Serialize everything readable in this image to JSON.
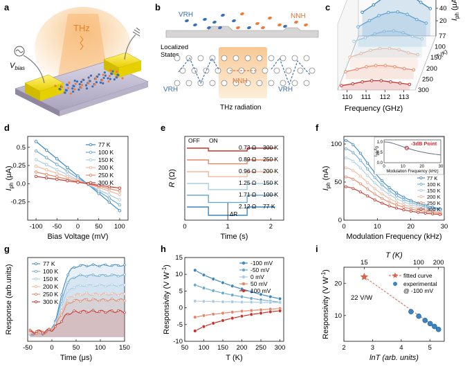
{
  "colors": {
    "77": "#3a86c2",
    "100": "#6aa8d3",
    "150": "#a9cde4",
    "200": "#f2b79a",
    "250": "#e98565",
    "300": "#c9332b",
    "gold": "#f2e500",
    "thz": "#f4a65a",
    "vrh_dot": "#3a6fb5",
    "nnh_dot": "#ee7d3a"
  },
  "panel_labels": [
    "a",
    "b",
    "c",
    "d",
    "e",
    "f",
    "g",
    "h",
    "i"
  ],
  "panel_a": {
    "thz_label": "THz",
    "vbias_label": "V",
    "vbias_sub": "bias"
  },
  "panel_b": {
    "vrh_top": "VRH",
    "nnh_top": "NNH",
    "localized": "Localized",
    "states": "States",
    "vrh_left": "VRH",
    "nnh_mid": "NNH",
    "vrh_right": "VRH",
    "thz_radiation": "THz radiation"
  },
  "chart_data": [
    {
      "id": "c",
      "type": "line",
      "series_style": "3d-waterfall",
      "xlabel": "Frequency (GHz)",
      "xticks": [
        110,
        111,
        112,
        113
      ],
      "zlabel": "I",
      "zlabel_sub": "ph",
      "zlabel_unit": " (μA)",
      "zticks": [
        20,
        40,
        60,
        80
      ],
      "depth_label": "T (K)",
      "depth_ticks": [
        "77",
        "100",
        "150",
        "200",
        "250",
        "300"
      ],
      "series": [
        {
          "name": "77",
          "x": [
            109.7,
            110.3,
            110.8,
            111.3,
            111.8,
            112.3,
            112.8,
            113.3
          ],
          "y": [
            38,
            50,
            61,
            68,
            70,
            64,
            54,
            44
          ]
        },
        {
          "name": "100",
          "x": [
            109.7,
            110.3,
            110.8,
            111.3,
            111.8,
            112.3,
            112.8,
            113.3
          ],
          "y": [
            32,
            42,
            50,
            55,
            56,
            52,
            44,
            38
          ]
        },
        {
          "name": "150",
          "x": [
            109.7,
            110.3,
            110.8,
            111.3,
            111.8,
            112.3,
            112.8,
            113.3
          ],
          "y": [
            26,
            32,
            38,
            42,
            43,
            40,
            34,
            30
          ]
        },
        {
          "name": "200",
          "x": [
            109.7,
            110.3,
            110.8,
            111.3,
            111.8,
            112.3,
            112.8,
            113.3
          ],
          "y": [
            18,
            24,
            29,
            32,
            32,
            30,
            25,
            22
          ]
        },
        {
          "name": "250",
          "x": [
            109.7,
            110.3,
            110.8,
            111.3,
            111.8,
            112.3,
            112.8,
            113.3
          ],
          "y": [
            12,
            16,
            20,
            22,
            22,
            20,
            17,
            15
          ]
        },
        {
          "name": "300",
          "x": [
            109.7,
            110.3,
            110.8,
            111.3,
            111.8,
            112.3,
            112.8,
            113.3
          ],
          "y": [
            7,
            10,
            13,
            15,
            15,
            13,
            11,
            9
          ]
        }
      ]
    },
    {
      "id": "d",
      "type": "line",
      "xlabel": "Bias Voltage (mV)",
      "ylabel": "I",
      "ylabel_sub": "ph",
      "ylabel_unit": " (μA)",
      "xlim": [
        -120,
        120
      ],
      "ylim": [
        -0.5,
        0.65
      ],
      "xticks": [
        -100,
        -50,
        0,
        50,
        100
      ],
      "yticks": [
        -0.25,
        0.0,
        0.25,
        0.5
      ],
      "ytick_labels": [
        "-0.25",
        "0.0",
        "0.25",
        "0.5"
      ],
      "xtick_labels": [
        "-100",
        "-50",
        "0",
        "50",
        "100"
      ],
      "legend": "top-right",
      "series": [
        {
          "name": "77 K",
          "color_key": "77",
          "x0": -100,
          "y0": 0.58,
          "x1": 100,
          "y1": -0.37
        },
        {
          "name": "100 K",
          "color_key": "100",
          "x0": -100,
          "y0": 0.45,
          "x1": 100,
          "y1": -0.29
        },
        {
          "name": "150 K",
          "color_key": "150",
          "x0": -100,
          "y0": 0.33,
          "x1": 100,
          "y1": -0.22
        },
        {
          "name": "200 K",
          "color_key": "200",
          "x0": -100,
          "y0": 0.24,
          "x1": 100,
          "y1": -0.15
        },
        {
          "name": "250 K",
          "color_key": "250",
          "x0": -100,
          "y0": 0.16,
          "x1": 100,
          "y1": -0.1
        },
        {
          "name": "300 K",
          "color_key": "300",
          "x0": -100,
          "y0": 0.1,
          "x1": 100,
          "y1": -0.06
        }
      ]
    },
    {
      "id": "e",
      "type": "line",
      "xlabel": "Time (s)",
      "ylabel": "R (Ω)",
      "xlim": [
        0,
        2.3
      ],
      "xticks": [
        0,
        1,
        2
      ],
      "xtick_labels": [
        "0",
        "1",
        "2"
      ],
      "off_label": "OFF",
      "on_label": "ON",
      "delta_label": "ΔR",
      "step_on": 0.55,
      "step_off": 1.45,
      "series": [
        {
          "name": "300 K",
          "color_key": "300",
          "delta": "0.73 Ω"
        },
        {
          "name": "250 K",
          "color_key": "250",
          "delta": "0.89 Ω"
        },
        {
          "name": "200 K",
          "color_key": "200",
          "delta": "0.96 Ω"
        },
        {
          "name": "150 K",
          "color_key": "150",
          "delta": "1.25 Ω"
        },
        {
          "name": "100 K",
          "color_key": "100",
          "delta": "1.71 Ω"
        },
        {
          "name": "77 K",
          "color_key": "77",
          "delta": "2.12 Ω"
        }
      ]
    },
    {
      "id": "f",
      "type": "line",
      "xlabel": "Modulation Frequency (kHz)",
      "ylabel": "I",
      "ylabel_sub": "ph",
      "ylabel_unit": " (nA)",
      "xlim": [
        0,
        30
      ],
      "ylim": [
        0,
        110
      ],
      "xticks": [
        0,
        10,
        20,
        30
      ],
      "yticks": [
        0,
        50,
        100
      ],
      "xtick_labels": [
        "0",
        "10",
        "20",
        "30"
      ],
      "ytick_labels": [
        "0",
        "50",
        "100"
      ],
      "legend": "right",
      "series": [
        {
          "name": "77 K",
          "color_key": "77",
          "amp": 103
        },
        {
          "name": "100 K",
          "color_key": "100",
          "amp": 92
        },
        {
          "name": "150 K",
          "color_key": "150",
          "amp": 80
        },
        {
          "name": "200 K",
          "color_key": "200",
          "amp": 67
        },
        {
          "name": "250 K",
          "color_key": "250",
          "amp": 55
        },
        {
          "name": "300 K",
          "color_key": "300",
          "amp": 42
        }
      ],
      "inset": {
        "ylabel": "I",
        "ylabel_sub": "ph",
        "ylabel_over": "/I",
        "ylabel_sub2": "0",
        "xlabel": "Modulation Frequency (kHz)",
        "xticks": [
          0,
          10,
          20,
          30
        ],
        "xtick_labels": [
          "0",
          "10",
          "20",
          "30"
        ],
        "yticks": [
          0.0,
          0.5,
          1.0
        ],
        "ytick_labels": [
          "0.0",
          "0.5",
          "1.0"
        ],
        "marker_label": "-3dB Point",
        "marker_x": 12,
        "marker_y": 0.707
      }
    },
    {
      "id": "g",
      "type": "area",
      "xlabel": "Time (μs)",
      "ylabel": "Response (arb.units)",
      "xlim": [
        -50,
        150
      ],
      "xticks": [
        -50,
        0,
        50,
        100,
        150
      ],
      "xtick_labels": [
        "-50",
        "0",
        "50",
        "100",
        "150"
      ],
      "legend": "top-left",
      "series": [
        {
          "name": "77 K",
          "color_key": "77",
          "level": 0.94
        },
        {
          "name": "100 K",
          "color_key": "100",
          "level": 0.8
        },
        {
          "name": "150 K",
          "color_key": "150",
          "level": 0.66
        },
        {
          "name": "200 K",
          "color_key": "200",
          "level": 0.54
        },
        {
          "name": "250 K",
          "color_key": "250",
          "level": 0.46
        },
        {
          "name": "300 K",
          "color_key": "300",
          "level": 0.3
        }
      ]
    },
    {
      "id": "h",
      "type": "line",
      "xlabel": "T (K)",
      "ylabel": "Responsivity (V W",
      "ylabel_sup": "-1",
      "ylabel_end": ")",
      "xlim": [
        50,
        310
      ],
      "ylim": [
        -10,
        15
      ],
      "xticks": [
        50,
        100,
        150,
        200,
        250,
        300
      ],
      "yticks": [
        -10,
        -5,
        0,
        5,
        10,
        15
      ],
      "xtick_labels": [
        "50",
        "100",
        "150",
        "200",
        "250",
        "300"
      ],
      "ytick_labels": [
        "-10",
        "-5",
        "0",
        "5",
        "10",
        "15"
      ],
      "legend": "top-right",
      "x": [
        77,
        100,
        125,
        150,
        175,
        200,
        225,
        250,
        275,
        300
      ],
      "series": [
        {
          "name": "-100 mV",
          "color_key": "77",
          "values": [
            11.2,
            9.8,
            8.6,
            7.5,
            6.5,
            5.6,
            4.8,
            4.0,
            3.3,
            2.7
          ]
        },
        {
          "name": "-50 mV",
          "color_key": "100",
          "values": [
            6.8,
            5.9,
            5.1,
            4.4,
            3.8,
            3.3,
            2.8,
            2.4,
            2.0,
            1.7
          ]
        },
        {
          "name": "0 mV",
          "color_key": "150",
          "values": [
            2.0,
            1.9,
            1.9,
            1.8,
            1.8,
            1.7,
            1.7,
            1.6,
            1.6,
            1.6
          ]
        },
        {
          "name": "50 mV",
          "color_key": "250",
          "values": [
            -2.8,
            -2.3,
            -1.9,
            -1.6,
            -1.3,
            -1.0,
            -0.8,
            -0.6,
            -0.4,
            -0.2
          ]
        },
        {
          "name": "100 mV",
          "color_key": "300",
          "values": [
            -6.9,
            -5.6,
            -4.6,
            -3.8,
            -3.1,
            -2.5,
            -2.0,
            -1.6,
            -1.2,
            -0.9
          ]
        }
      ]
    },
    {
      "id": "i",
      "type": "scatter",
      "xlabel": "lnT (arb. units)",
      "ylabel": "Responsivity (V W",
      "ylabel_sup": "-1",
      "ylabel_end": ")",
      "top_xlabel": "T (K)",
      "top_ticks": [
        15,
        100,
        200
      ],
      "top_tick_labels": [
        "15",
        "100",
        "200"
      ],
      "xlim": [
        2,
        5.5
      ],
      "ylim": [
        2,
        25
      ],
      "xticks": [
        2,
        3,
        4,
        5
      ],
      "xtick_labels": [
        "2",
        "3",
        "4",
        "5"
      ],
      "yticks": [
        10,
        20
      ],
      "ytick_labels": [
        "10",
        "20"
      ],
      "legend": "top-right",
      "legend_fit": "fitted curve",
      "legend_exp1": "experimental",
      "legend_exp2": "@ -100 mV",
      "star_label": "22 V/W",
      "star": {
        "x": 2.71,
        "y": 22
      },
      "experimental": {
        "x": [
          4.34,
          4.61,
          4.83,
          5.01,
          5.16,
          5.3
        ],
        "y": [
          11.2,
          9.8,
          8.5,
          7.5,
          6.6,
          5.7
        ]
      }
    }
  ]
}
